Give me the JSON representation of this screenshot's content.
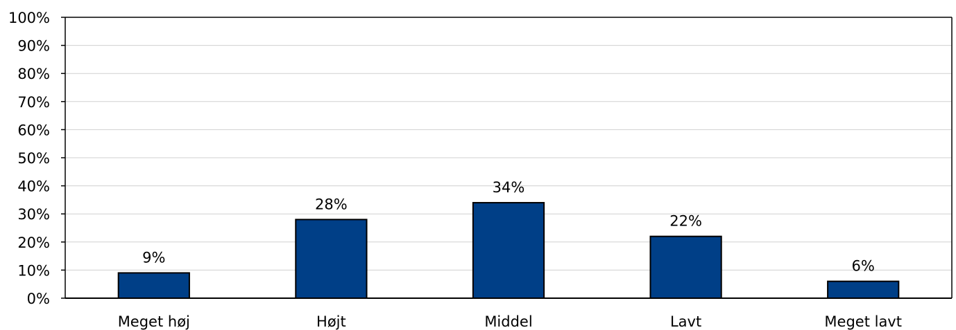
{
  "chart_data": {
    "type": "bar",
    "categories": [
      "Meget høj",
      "Højt",
      "Middel",
      "Lavt",
      "Meget lavt"
    ],
    "values": [
      9,
      28,
      34,
      22,
      6
    ],
    "value_labels": [
      "9%",
      "28%",
      "34%",
      "22%",
      "6%"
    ],
    "ylim": [
      0,
      100
    ],
    "y_ticks": [
      0,
      10,
      20,
      30,
      40,
      50,
      60,
      70,
      80,
      90,
      100
    ],
    "y_tick_labels": [
      "0%",
      "10%",
      "20%",
      "30%",
      "40%",
      "50%",
      "60%",
      "70%",
      "80%",
      "90%",
      "100%"
    ],
    "grid": true,
    "bar_color": "#003f87",
    "bar_edge_color": "#000000",
    "gridline_color": "#d0d0d0"
  }
}
